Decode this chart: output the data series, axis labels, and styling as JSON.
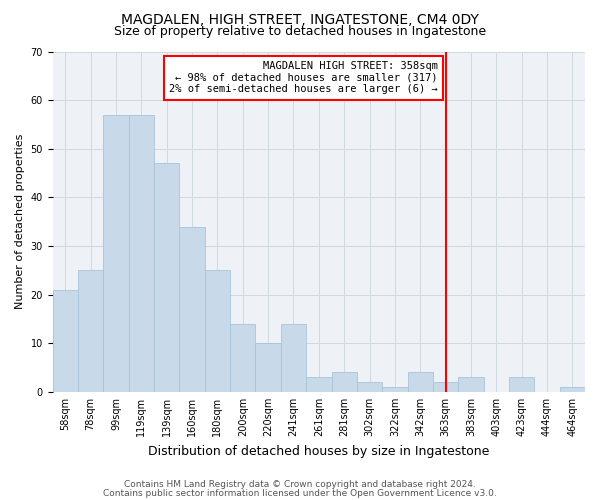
{
  "title": "MAGDALEN, HIGH STREET, INGATESTONE, CM4 0DY",
  "subtitle": "Size of property relative to detached houses in Ingatestone",
  "xlabel": "Distribution of detached houses by size in Ingatestone",
  "ylabel": "Number of detached properties",
  "bar_labels": [
    "58sqm",
    "78sqm",
    "99sqm",
    "119sqm",
    "139sqm",
    "160sqm",
    "180sqm",
    "200sqm",
    "220sqm",
    "241sqm",
    "261sqm",
    "281sqm",
    "302sqm",
    "322sqm",
    "342sqm",
    "363sqm",
    "383sqm",
    "403sqm",
    "423sqm",
    "444sqm",
    "464sqm"
  ],
  "bar_heights": [
    21,
    25,
    57,
    57,
    47,
    34,
    25,
    14,
    10,
    14,
    3,
    4,
    2,
    1,
    4,
    2,
    3,
    0,
    3,
    0,
    1
  ],
  "bar_color": "#c8d9ea",
  "bar_edgecolor": "#a8c4d8",
  "grid_color": "#d0d8e0",
  "vline_x_index": 15,
  "vline_color": "red",
  "annotation_text": "MAGDALEN HIGH STREET: 358sqm\n← 98% of detached houses are smaller (317)\n2% of semi-detached houses are larger (6) →",
  "annotation_box_color": "white",
  "annotation_box_edgecolor": "red",
  "ylim": [
    0,
    70
  ],
  "yticks": [
    0,
    10,
    20,
    30,
    40,
    50,
    60,
    70
  ],
  "footer_line1": "Contains HM Land Registry data © Crown copyright and database right 2024.",
  "footer_line2": "Contains public sector information licensed under the Open Government Licence v3.0.",
  "title_fontsize": 10,
  "subtitle_fontsize": 9,
  "xlabel_fontsize": 9,
  "ylabel_fontsize": 8,
  "tick_fontsize": 7,
  "annotation_fontsize": 7.5,
  "footer_fontsize": 6.5,
  "bg_color": "#eef2f7"
}
